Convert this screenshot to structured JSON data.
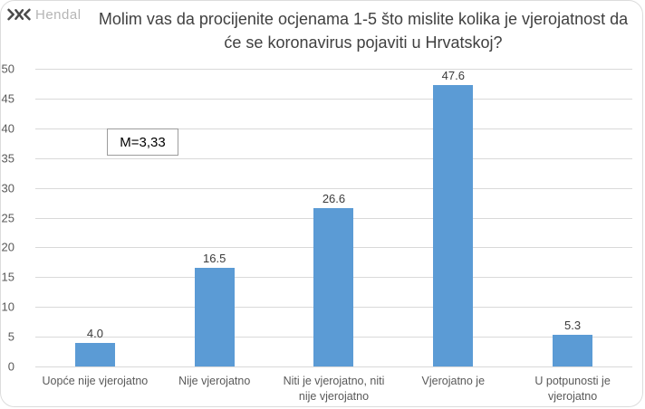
{
  "logo": {
    "text": "Hendal",
    "icon": "hendal-mark",
    "icon_color": "#4a4a4a",
    "text_color": "#b5b5b5"
  },
  "chart_data": {
    "type": "bar",
    "title": "Molim vas da procijenite ocjenama 1-5 što mislite kolika je vjerojatnost da će se koronavirus pojaviti u Hrvatskoj?",
    "categories": [
      "Uopće nije vjerojatno",
      "Nije vjerojatno",
      "Niti je vjerojatno, niti nije vjerojatno",
      "Vjerojatno je",
      "U potpunosti je vjerojatno"
    ],
    "values": [
      4.0,
      16.5,
      26.6,
      47.6,
      5.3
    ],
    "value_labels": [
      "4.0",
      "16.5",
      "26.6",
      "47.6",
      "5.3"
    ],
    "annotation": "M=3,33",
    "xlabel": "",
    "ylabel": "",
    "ylim": [
      0,
      50
    ],
    "yticks": [
      0,
      5,
      10,
      15,
      20,
      25,
      30,
      35,
      40,
      45,
      50
    ],
    "grid": "horizontal",
    "legend": "none",
    "bar_color": "#5b9bd5",
    "gridline_color": "#d9d9d9",
    "axis_text_color": "#595959",
    "title_color": "#404040"
  }
}
